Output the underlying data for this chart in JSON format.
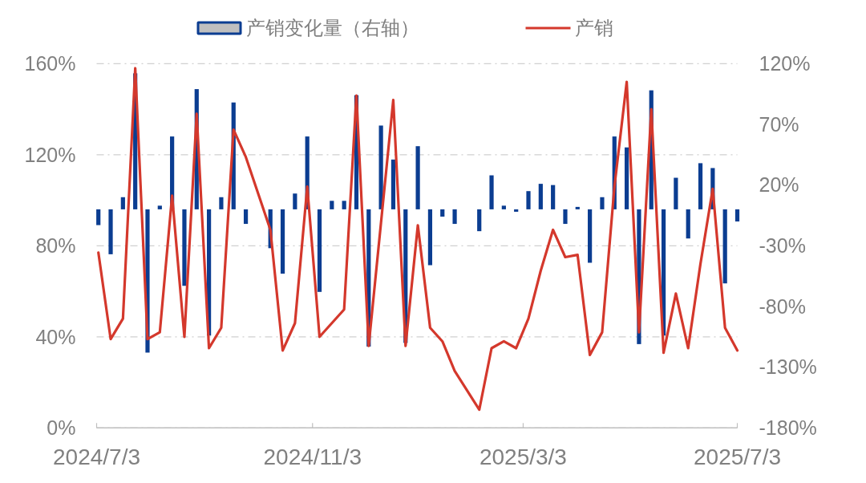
{
  "chart_data": {
    "type": "bar",
    "legend": "top",
    "grid": "y",
    "x": [
      "2024-07-04",
      "2024-07-11",
      "2024-07-18",
      "2024-07-25",
      "2024-08-01",
      "2024-08-08",
      "2024-08-15",
      "2024-08-22",
      "2024-08-29",
      "2024-09-05",
      "2024-09-12",
      "2024-09-19",
      "2024-09-26",
      "2024-10-10",
      "2024-10-17",
      "2024-10-24",
      "2024-10-31",
      "2024-11-07",
      "2024-11-14",
      "2024-11-21",
      "2024-11-28",
      "2024-12-05",
      "2024-12-12",
      "2024-12-19",
      "2024-12-26",
      "2025-01-02",
      "2025-01-09",
      "2025-01-16",
      "2025-01-23",
      "2025-02-06",
      "2025-02-13",
      "2025-02-20",
      "2025-02-27",
      "2025-03-06",
      "2025-03-13",
      "2025-03-20",
      "2025-03-27",
      "2025-04-03",
      "2025-04-10",
      "2025-04-17",
      "2025-04-24",
      "2025-05-01",
      "2025-05-08",
      "2025-05-15",
      "2025-05-22",
      "2025-05-29",
      "2025-06-05",
      "2025-06-12",
      "2025-06-19",
      "2025-06-26",
      "2025-07-03"
    ],
    "xlim": [
      "2024-07-03",
      "2025-07-03"
    ],
    "xticks": [
      {
        "value": "2024-07-03",
        "label": "2024/7/3"
      },
      {
        "value": "2024-11-03",
        "label": "2024/11/3"
      },
      {
        "value": "2025-03-03",
        "label": "2025/3/3"
      },
      {
        "value": "2025-07-03",
        "label": "2025/7/3"
      }
    ],
    "ylim": [
      0,
      160
    ],
    "yticks": [
      {
        "value": 0,
        "label": "0%"
      },
      {
        "value": 40,
        "label": "40%"
      },
      {
        "value": 80,
        "label": "80%"
      },
      {
        "value": 120,
        "label": "120%"
      },
      {
        "value": 160,
        "label": "160%"
      }
    ],
    "y2lim": [
      -180,
      120
    ],
    "y2ticks": [
      {
        "value": -180,
        "label": "-180%"
      },
      {
        "value": -130,
        "label": "-130%"
      },
      {
        "value": -80,
        "label": "-80%"
      },
      {
        "value": -30,
        "label": "-30%"
      },
      {
        "value": 20,
        "label": "20%"
      },
      {
        "value": 70,
        "label": "70%"
      },
      {
        "value": 120,
        "label": "120%"
      }
    ],
    "series": [
      {
        "name": "产销变化量（右轴）",
        "axis": "y2",
        "color": "#0b3d91",
        "values": [
          -13,
          -37,
          10,
          112,
          -118,
          3,
          60,
          -63,
          99,
          -104,
          10,
          88,
          -12,
          -32,
          -53,
          13,
          60,
          -68,
          7,
          7,
          94,
          -113,
          69,
          41,
          -110,
          52,
          -46,
          -6,
          -12,
          -18,
          28,
          3,
          -2,
          15,
          21,
          20,
          -12,
          2,
          -44,
          10,
          60,
          51,
          -111,
          98,
          -104,
          26,
          -24,
          38,
          34,
          -61,
          -10
        ]
      },
      {
        "name": "产销",
        "type": "line",
        "color": "#d4382c",
        "values": [
          77,
          39,
          48,
          158,
          39,
          42,
          102,
          40,
          138,
          35,
          44,
          131,
          119,
          87,
          34,
          46,
          106,
          40,
          46,
          52,
          146,
          36,
          90,
          144,
          36,
          89,
          44,
          38,
          25,
          8,
          35,
          38,
          35,
          48,
          69,
          87,
          75,
          76,
          32,
          42,
          106,
          152,
          42,
          140,
          33,
          59,
          35,
          72,
          105,
          44,
          34
        ]
      }
    ]
  }
}
